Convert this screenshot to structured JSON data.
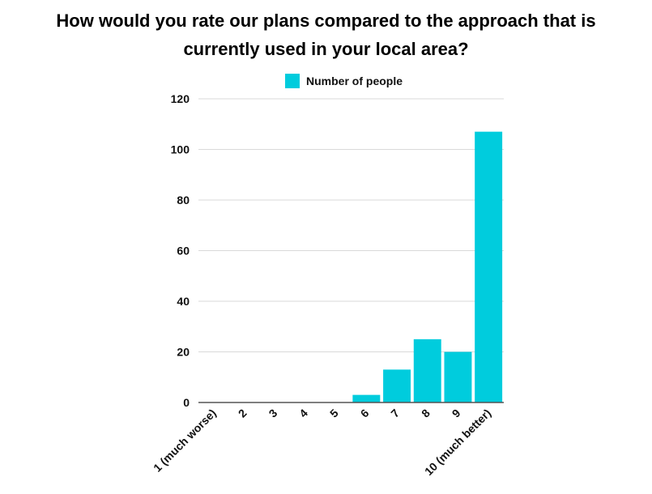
{
  "chart_data": {
    "type": "bar",
    "title_lines": [
      "How would you rate our plans compared to the approach that is",
      "currently used in your local area?"
    ],
    "legend": [
      "Number of people"
    ],
    "legend_position": "top-center",
    "categories": [
      "1 (much worse)",
      "2",
      "3",
      "4",
      "5",
      "6",
      "7",
      "8",
      "9",
      "10 (much better)"
    ],
    "series": [
      {
        "name": "Number of people",
        "values": [
          0,
          0,
          0,
          0,
          0,
          3,
          13,
          25,
          20,
          107
        ]
      }
    ],
    "ylim": [
      0,
      120
    ],
    "yticks": [
      "0",
      "20",
      "40",
      "60",
      "80",
      "100",
      "120"
    ],
    "grid": true,
    "xlabel": "",
    "ylabel": "",
    "colors": {
      "bar": "#00CCDD",
      "grid": "#d9d9d9",
      "axis": "#555555"
    }
  }
}
